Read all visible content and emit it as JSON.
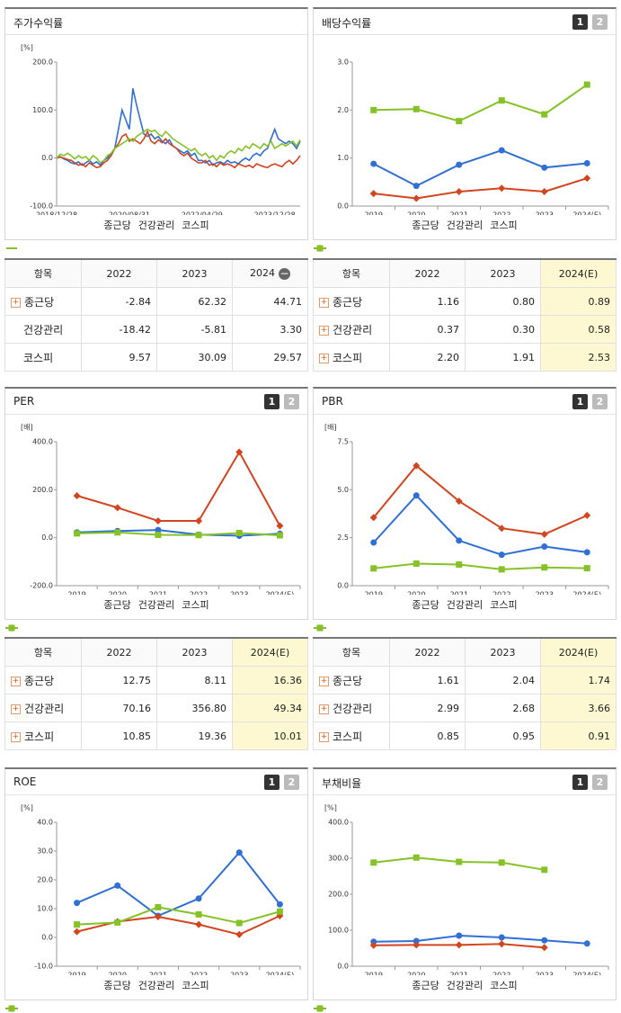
{
  "chart_data": [
    {
      "type": "line",
      "title": "주가수익률",
      "unit": "[%]",
      "categories": [
        "2018/12/28",
        null,
        null,
        null,
        null,
        null,
        null,
        null,
        null,
        null,
        null,
        null,
        null,
        null,
        null,
        null,
        null,
        null,
        null,
        null,
        "2020/08/31",
        null,
        null,
        null,
        null,
        null,
        null,
        null,
        null,
        null,
        null,
        null,
        null,
        null,
        null,
        null,
        null,
        null,
        null,
        null,
        "2022/04/29",
        null,
        null,
        null,
        null,
        null,
        null,
        null,
        null,
        null,
        null,
        null,
        null,
        null,
        null,
        null,
        null,
        null,
        null,
        null,
        "2023/12/28",
        null,
        null,
        null,
        null,
        null,
        null,
        null
      ],
      "ylim": [
        -100,
        200
      ],
      "yticks": [
        {
          "value": -100,
          "label": "-100.0"
        },
        {
          "value": 0,
          "label": "0.0"
        },
        {
          "value": 100,
          "label": "100.0"
        },
        {
          "value": 200,
          "label": "200.0"
        }
      ],
      "series": [
        {
          "name": "종근당",
          "color": "#2f6fd6",
          "marker": "line",
          "values": [
            0,
            3,
            -2,
            -5,
            -10,
            -12,
            -8,
            -15,
            -10,
            -5,
            -12,
            -8,
            -15,
            -5,
            0,
            10,
            20,
            60,
            100,
            80,
            60,
            145,
            110,
            80,
            50,
            45,
            50,
            40,
            45,
            35,
            30,
            38,
            25,
            20,
            15,
            10,
            15,
            5,
            10,
            -5,
            -5,
            -10,
            -5,
            -15,
            -10,
            -8,
            -12,
            -5,
            -10,
            -8,
            -12,
            -5,
            0,
            -5,
            5,
            10,
            5,
            15,
            20,
            40,
            60,
            40,
            35,
            30,
            35,
            30,
            20,
            35
          ]
        },
        {
          "name": "건강관리",
          "color": "#d2451e",
          "marker": "line",
          "values": [
            0,
            2,
            0,
            -3,
            -5,
            -10,
            -15,
            -12,
            -18,
            -10,
            -15,
            -20,
            -18,
            -10,
            -5,
            5,
            20,
            30,
            45,
            50,
            35,
            40,
            35,
            30,
            40,
            55,
            35,
            30,
            38,
            32,
            40,
            30,
            25,
            20,
            10,
            5,
            10,
            0,
            -5,
            -10,
            -10,
            -5,
            -15,
            -12,
            -18,
            -10,
            -15,
            -12,
            -15,
            -20,
            -12,
            -15,
            -18,
            -15,
            -20,
            -12,
            -15,
            -18,
            -20,
            -15,
            -12,
            -15,
            -18,
            -10,
            -5,
            -12,
            -5,
            5
          ]
        },
        {
          "name": "코스피",
          "color": "#84c225",
          "marker": "line",
          "values": [
            0,
            8,
            5,
            10,
            5,
            -2,
            5,
            0,
            3,
            -5,
            5,
            0,
            -10,
            -5,
            5,
            10,
            20,
            25,
            30,
            35,
            40,
            35,
            45,
            50,
            55,
            60,
            55,
            58,
            50,
            45,
            55,
            48,
            40,
            35,
            30,
            25,
            20,
            15,
            20,
            10,
            5,
            10,
            0,
            5,
            -5,
            5,
            0,
            10,
            15,
            10,
            20,
            15,
            25,
            20,
            30,
            25,
            20,
            30,
            25,
            35,
            20,
            25,
            30,
            25,
            30,
            35,
            25,
            38
          ]
        }
      ]
    },
    {
      "type": "line",
      "title": "배당수익률",
      "buttons": [
        "1",
        "2"
      ],
      "categories": [
        "2019",
        "2020",
        "2021",
        "2022",
        "2023",
        "2024(E)"
      ],
      "ylim": [
        0,
        3
      ],
      "yticks": [
        {
          "value": 0,
          "label": "0.0"
        },
        {
          "value": 1,
          "label": "1.0"
        },
        {
          "value": 2,
          "label": "2.0"
        },
        {
          "value": 3,
          "label": "3.0"
        }
      ],
      "series": [
        {
          "name": "종근당",
          "color": "#2f6fd6",
          "marker": "circle",
          "values": [
            0.88,
            0.42,
            0.86,
            1.16,
            0.8,
            0.89
          ]
        },
        {
          "name": "건강관리",
          "color": "#d2451e",
          "marker": "diamond",
          "values": [
            0.26,
            0.16,
            0.3,
            0.37,
            0.3,
            0.58
          ]
        },
        {
          "name": "코스피",
          "color": "#84c225",
          "marker": "square",
          "values": [
            2.0,
            2.02,
            1.77,
            2.2,
            1.91,
            2.53
          ]
        }
      ]
    },
    {
      "type": "line",
      "title": "PER",
      "buttons": [
        "1",
        "2"
      ],
      "unit": "[배]",
      "categories": [
        "2019",
        "2020",
        "2021",
        "2022",
        "2023",
        "2024(E)"
      ],
      "ylim": [
        -200,
        400
      ],
      "yticks": [
        {
          "value": -200,
          "label": "-200.0"
        },
        {
          "value": 0,
          "label": "0.0"
        },
        {
          "value": 200,
          "label": "200.0"
        },
        {
          "value": 400,
          "label": "400.0"
        }
      ],
      "series": [
        {
          "name": "종근당",
          "color": "#2f6fd6",
          "marker": "circle",
          "values": [
            22,
            28,
            32,
            12.75,
            8.11,
            16.36
          ]
        },
        {
          "name": "건강관리",
          "color": "#d2451e",
          "marker": "diamond",
          "values": [
            175,
            125,
            70,
            70.16,
            356.8,
            49.34
          ]
        },
        {
          "name": "코스피",
          "color": "#84c225",
          "marker": "square",
          "values": [
            18,
            22,
            12,
            10.85,
            19.36,
            10.01
          ]
        }
      ]
    },
    {
      "type": "line",
      "title": "PBR",
      "buttons": [
        "1",
        "2"
      ],
      "unit": "[배]",
      "categories": [
        "2019",
        "2020",
        "2021",
        "2022",
        "2023",
        "2024(E)"
      ],
      "ylim": [
        0,
        7.5
      ],
      "yticks": [
        {
          "value": 0,
          "label": "0.0"
        },
        2.5,
        {
          "value": 5,
          "label": "5.0"
        },
        7.5
      ],
      "series": [
        {
          "name": "종근당",
          "color": "#2f6fd6",
          "marker": "circle",
          "values": [
            2.25,
            4.7,
            2.35,
            1.61,
            2.04,
            1.74
          ]
        },
        {
          "name": "건강관리",
          "color": "#d2451e",
          "marker": "diamond",
          "values": [
            3.55,
            6.25,
            4.4,
            2.99,
            2.68,
            3.66
          ]
        },
        {
          "name": "코스피",
          "color": "#84c225",
          "marker": "square",
          "values": [
            0.9,
            1.15,
            1.1,
            0.85,
            0.95,
            0.91
          ]
        }
      ]
    },
    {
      "type": "line",
      "title": "ROE",
      "buttons": [
        "1",
        "2"
      ],
      "unit": "[%]",
      "categories": [
        "2019",
        "2020",
        "2021",
        "2022",
        "2023",
        "2024(E)"
      ],
      "ylim": [
        -10,
        40
      ],
      "yticks": [
        {
          "value": -10,
          "label": "-10.0"
        },
        {
          "value": 0,
          "label": "0.0"
        },
        {
          "value": 10,
          "label": "10.0"
        },
        {
          "value": 20,
          "label": "20.0"
        },
        {
          "value": 30,
          "label": "30.0"
        },
        {
          "value": 40,
          "label": "40.0"
        }
      ],
      "series": [
        {
          "name": "종근당",
          "color": "#2f6fd6",
          "marker": "circle",
          "values": [
            12,
            18,
            7.5,
            13.5,
            29.5,
            11.5
          ]
        },
        {
          "name": "건강관리",
          "color": "#d2451e",
          "marker": "diamond",
          "values": [
            2,
            5.5,
            7.2,
            4.5,
            1,
            7.5
          ]
        },
        {
          "name": "코스피",
          "color": "#84c225",
          "marker": "square",
          "values": [
            4.5,
            5.2,
            10.5,
            8,
            5,
            9
          ]
        }
      ]
    },
    {
      "type": "line",
      "title": "부채비율",
      "buttons": [
        "1",
        "2"
      ],
      "unit": "[%]",
      "categories": [
        "2019",
        "2020",
        "2021",
        "2022",
        "2023",
        "2024(E)"
      ],
      "ylim": [
        0,
        400
      ],
      "yticks": [
        {
          "value": 0,
          "label": "0.0"
        },
        {
          "value": 100,
          "label": "100.0"
        },
        {
          "value": 200,
          "label": "200.0"
        },
        {
          "value": 300,
          "label": "300.0"
        },
        {
          "value": 400,
          "label": "400.0"
        }
      ],
      "series": [
        {
          "name": "종근당",
          "color": "#2f6fd6",
          "marker": "circle",
          "values": [
            68,
            70,
            85,
            80,
            72,
            63
          ]
        },
        {
          "name": "건강관리",
          "color": "#d2451e",
          "marker": "diamond",
          "values": [
            58,
            59,
            59,
            62,
            52,
            null
          ]
        },
        {
          "name": "코스피",
          "color": "#84c225",
          "marker": "square",
          "values": [
            288,
            302,
            290,
            288,
            268,
            null
          ]
        }
      ]
    }
  ],
  "tables": [
    {
      "header": [
        "항목",
        "2022",
        "2023",
        "2024"
      ],
      "highlight_last": false,
      "row_icons": [
        true,
        false,
        false
      ],
      "rows": [
        [
          "종근당",
          "-2.84",
          "62.32",
          "44.71"
        ],
        [
          "건강관리",
          "-18.42",
          "-5.81",
          "3.30"
        ],
        [
          "코스피",
          "9.57",
          "30.09",
          "29.57"
        ]
      ]
    },
    {
      "header": [
        "항목",
        "2022",
        "2023",
        "2024(E)"
      ],
      "highlight_last": true,
      "row_icons": [
        true,
        true,
        true
      ],
      "rows": [
        [
          "종근당",
          "1.16",
          "0.80",
          "0.89"
        ],
        [
          "건강관리",
          "0.37",
          "0.30",
          "0.58"
        ],
        [
          "코스피",
          "2.20",
          "1.91",
          "2.53"
        ]
      ]
    },
    {
      "header": [
        "항목",
        "2022",
        "2023",
        "2024(E)"
      ],
      "highlight_last": true,
      "row_icons": [
        true,
        true,
        true
      ],
      "rows": [
        [
          "종근당",
          "12.75",
          "8.11",
          "16.36"
        ],
        [
          "건강관리",
          "70.16",
          "356.80",
          "49.34"
        ],
        [
          "코스피",
          "10.85",
          "19.36",
          "10.01"
        ]
      ]
    },
    {
      "header": [
        "항목",
        "2022",
        "2023",
        "2024(E)"
      ],
      "highlight_last": true,
      "row_icons": [
        true,
        true,
        true
      ],
      "rows": [
        [
          "종근당",
          "1.61",
          "2.04",
          "1.74"
        ],
        [
          "건강관리",
          "2.99",
          "2.68",
          "3.66"
        ],
        [
          "코스피",
          "0.85",
          "0.95",
          "0.91"
        ]
      ]
    }
  ]
}
